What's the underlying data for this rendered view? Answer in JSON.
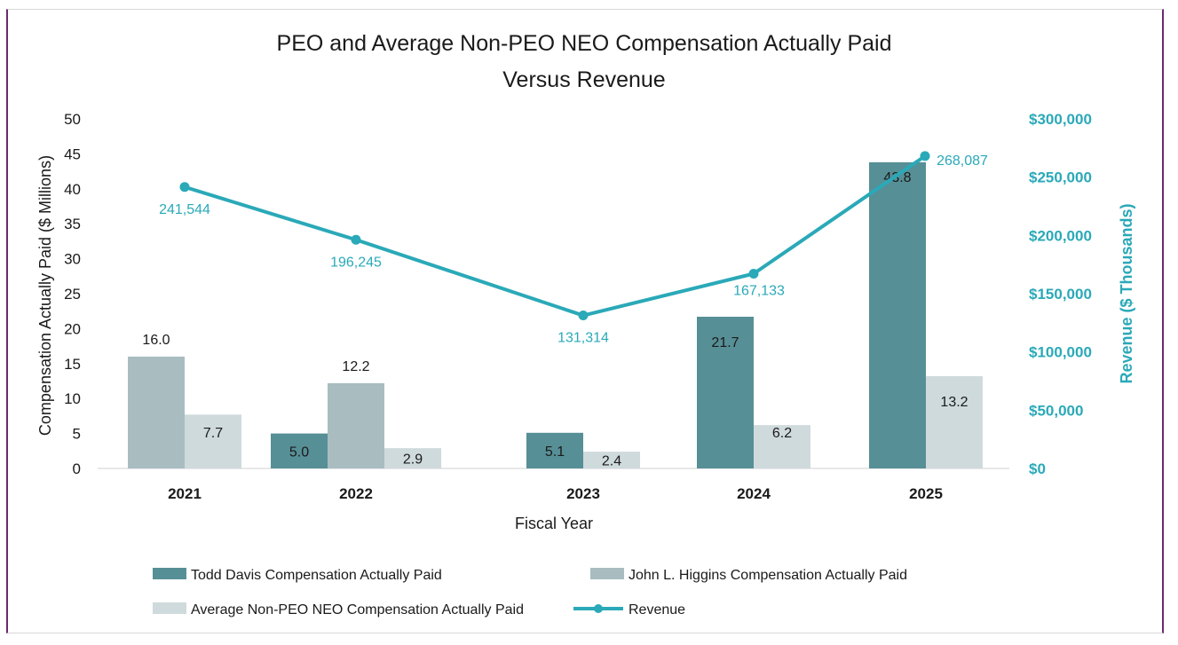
{
  "chart_data": {
    "type": "bar",
    "title": [
      "PEO and Average Non-PEO NEO Compensation Actually Paid",
      "Versus Revenue"
    ],
    "xlabel": "Fiscal Year",
    "ylabel": "Compensation Actually Paid ($ Millions)",
    "y2label": "Revenue ($ Thousands)",
    "ylim": [
      0,
      50
    ],
    "y2lim": [
      0,
      300000
    ],
    "yticks": [
      "0",
      "5",
      "10",
      "15",
      "20",
      "25",
      "30",
      "35",
      "40",
      "45",
      "50"
    ],
    "y2ticks": [
      "$0",
      "$50,000",
      "$100,000",
      "$150,000",
      "$200,000",
      "$250,000",
      "$300,000"
    ],
    "categories": [
      "2021",
      "2022",
      "2023",
      "2024",
      "2025"
    ],
    "series": [
      {
        "name": "Todd Davis Compensation Actually Paid",
        "kind": "bar",
        "color": "#578f96",
        "values": [
          null,
          5.0,
          5.1,
          21.7,
          43.8
        ],
        "labels": [
          "",
          "5.0",
          "5.1",
          "21.7",
          "43.8"
        ]
      },
      {
        "name": "John L. Higgins Compensation Actually Paid",
        "kind": "bar",
        "color": "#a9bdc1",
        "values": [
          16.0,
          12.2,
          null,
          null,
          null
        ],
        "labels": [
          "16.0",
          "12.2",
          "",
          "",
          ""
        ]
      },
      {
        "name": "Average Non-PEO NEO Compensation Actually Paid",
        "kind": "bar",
        "color": "#cfdadd",
        "values": [
          7.7,
          2.9,
          2.4,
          6.2,
          13.2
        ],
        "labels": [
          "7.7",
          "2.9",
          "2.4",
          "6.2",
          "13.2"
        ]
      },
      {
        "name": "Revenue",
        "kind": "line",
        "axis": "right",
        "color": "#2aa9b8",
        "values": [
          241544,
          196245,
          131314,
          167133,
          268087
        ],
        "labels": [
          "241,544",
          "196,245",
          "131,314",
          "167,133",
          "268,087"
        ]
      }
    ],
    "legend_position": "bottom",
    "grid": false
  }
}
